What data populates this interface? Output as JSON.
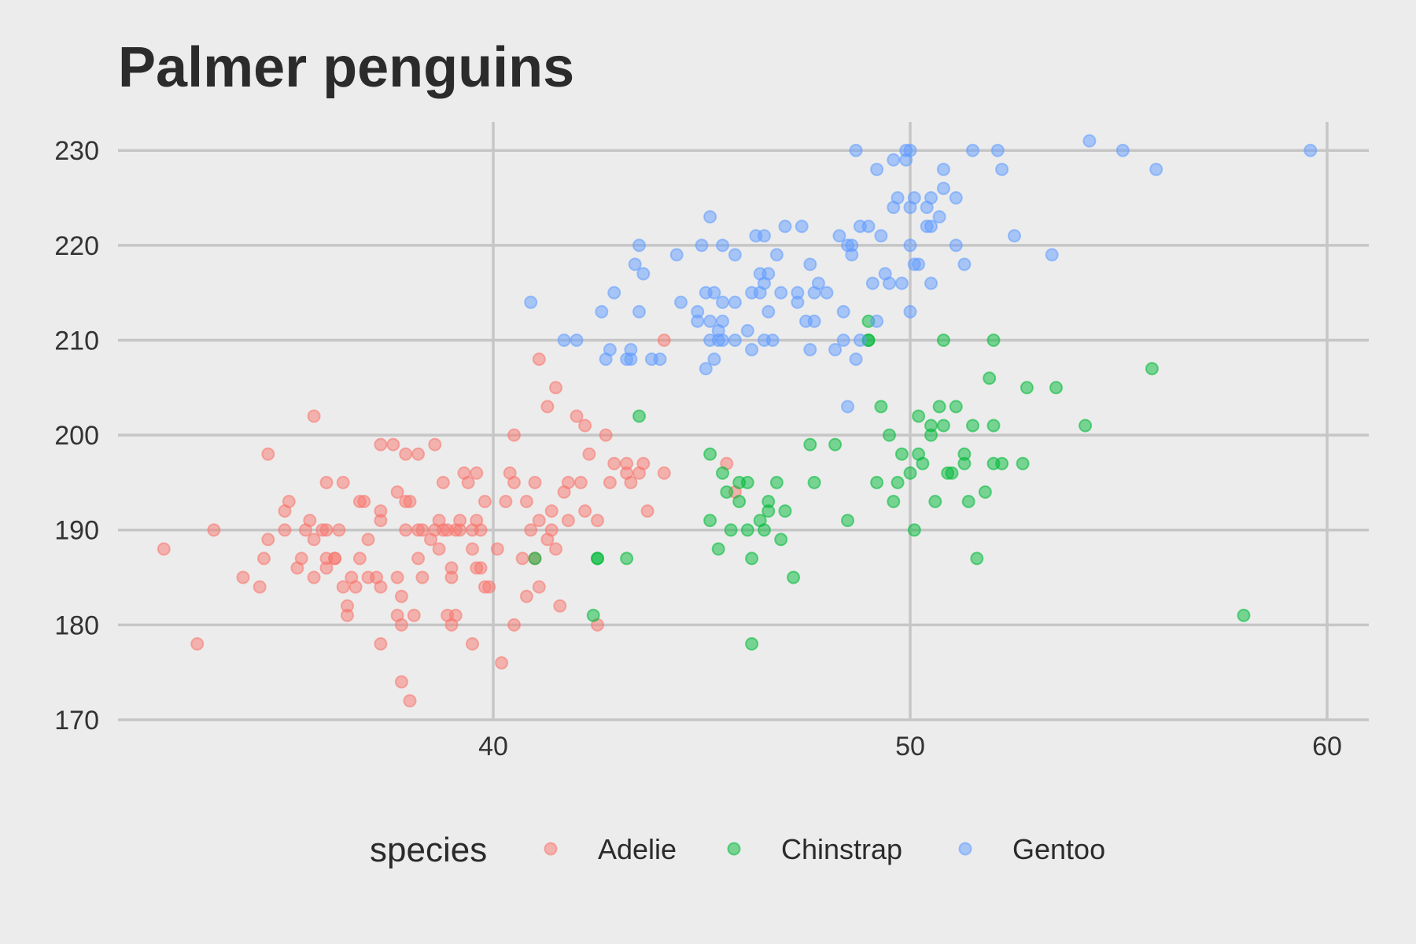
{
  "chart_data": {
    "type": "scatter",
    "title": "Palmer penguins",
    "xlabel": "",
    "ylabel": "",
    "xlim": [
      31,
      61
    ],
    "ylim": [
      170,
      233
    ],
    "x_ticks": [
      40,
      50,
      60
    ],
    "y_ticks": [
      170,
      180,
      190,
      200,
      210,
      220,
      230
    ],
    "x_tick_labels": [
      "40",
      "50",
      "60"
    ],
    "y_tick_labels": [
      "170",
      "180",
      "190",
      "200",
      "210",
      "220",
      "230"
    ],
    "grid": true,
    "legend": {
      "title": "species",
      "position": "bottom"
    },
    "series": [
      {
        "name": "Adelie",
        "color": "#F8766D",
        "points": [
          [
            32.1,
            188
          ],
          [
            32.9,
            178
          ],
          [
            33.3,
            190
          ],
          [
            34.0,
            185
          ],
          [
            34.4,
            184
          ],
          [
            34.5,
            187
          ],
          [
            34.6,
            189
          ],
          [
            34.6,
            198
          ],
          [
            35.0,
            190
          ],
          [
            35.0,
            192
          ],
          [
            35.1,
            193
          ],
          [
            35.3,
            186
          ],
          [
            35.4,
            187
          ],
          [
            35.5,
            190
          ],
          [
            35.6,
            191
          ],
          [
            35.7,
            202
          ],
          [
            35.7,
            185
          ],
          [
            35.7,
            189
          ],
          [
            35.9,
            190
          ],
          [
            36.0,
            190
          ],
          [
            36.0,
            186
          ],
          [
            36.0,
            195
          ],
          [
            36.0,
            187
          ],
          [
            36.2,
            187
          ],
          [
            36.2,
            187
          ],
          [
            36.3,
            190
          ],
          [
            36.4,
            184
          ],
          [
            36.4,
            195
          ],
          [
            36.5,
            182
          ],
          [
            36.5,
            181
          ],
          [
            36.6,
            185
          ],
          [
            36.7,
            184
          ],
          [
            36.8,
            193
          ],
          [
            36.8,
            187
          ],
          [
            36.9,
            193
          ],
          [
            37.0,
            189
          ],
          [
            37.0,
            185
          ],
          [
            37.2,
            185
          ],
          [
            37.3,
            178
          ],
          [
            37.3,
            184
          ],
          [
            37.3,
            191
          ],
          [
            37.3,
            192
          ],
          [
            37.3,
            199
          ],
          [
            37.6,
            199
          ],
          [
            37.7,
            194
          ],
          [
            37.7,
            185
          ],
          [
            37.7,
            181
          ],
          [
            37.8,
            180
          ],
          [
            37.8,
            183
          ],
          [
            37.9,
            193
          ],
          [
            37.9,
            190
          ],
          [
            37.9,
            198
          ],
          [
            37.8,
            174
          ],
          [
            38.0,
            172
          ],
          [
            38.0,
            193
          ],
          [
            38.1,
            181
          ],
          [
            38.2,
            190
          ],
          [
            38.2,
            198
          ],
          [
            38.2,
            187
          ],
          [
            38.3,
            185
          ],
          [
            38.3,
            190
          ],
          [
            38.5,
            189
          ],
          [
            38.6,
            190
          ],
          [
            38.6,
            199
          ],
          [
            38.7,
            191
          ],
          [
            38.7,
            188
          ],
          [
            38.8,
            190
          ],
          [
            38.8,
            195
          ],
          [
            38.9,
            181
          ],
          [
            38.9,
            190
          ],
          [
            39.0,
            180
          ],
          [
            39.0,
            186
          ],
          [
            39.0,
            185
          ],
          [
            39.1,
            190
          ],
          [
            39.1,
            181
          ],
          [
            39.2,
            191
          ],
          [
            39.2,
            190
          ],
          [
            39.3,
            196
          ],
          [
            39.4,
            195
          ],
          [
            39.5,
            178
          ],
          [
            39.5,
            190
          ],
          [
            39.5,
            188
          ],
          [
            39.6,
            186
          ],
          [
            39.6,
            191
          ],
          [
            39.6,
            196
          ],
          [
            39.7,
            186
          ],
          [
            39.7,
            190
          ],
          [
            39.8,
            184
          ],
          [
            39.8,
            193
          ],
          [
            39.9,
            184
          ],
          [
            40.1,
            188
          ],
          [
            40.2,
            176
          ],
          [
            40.3,
            193
          ],
          [
            40.4,
            196
          ],
          [
            40.5,
            195
          ],
          [
            40.5,
            200
          ],
          [
            40.5,
            180
          ],
          [
            40.7,
            187
          ],
          [
            40.8,
            183
          ],
          [
            40.8,
            193
          ],
          [
            40.9,
            190
          ],
          [
            41.0,
            187
          ],
          [
            41.0,
            195
          ],
          [
            41.1,
            191
          ],
          [
            41.1,
            184
          ],
          [
            41.1,
            208
          ],
          [
            41.3,
            203
          ],
          [
            41.3,
            189
          ],
          [
            41.4,
            192
          ],
          [
            41.4,
            190
          ],
          [
            41.5,
            188
          ],
          [
            41.5,
            205
          ],
          [
            41.6,
            182
          ],
          [
            41.7,
            194
          ],
          [
            41.8,
            195
          ],
          [
            41.8,
            191
          ],
          [
            42.0,
            202
          ],
          [
            42.1,
            195
          ],
          [
            42.2,
            192
          ],
          [
            42.2,
            201
          ],
          [
            42.3,
            198
          ],
          [
            42.7,
            200
          ],
          [
            42.8,
            195
          ],
          [
            42.9,
            197
          ],
          [
            42.5,
            180
          ],
          [
            42.5,
            191
          ],
          [
            43.2,
            197
          ],
          [
            43.2,
            196
          ],
          [
            43.3,
            195
          ],
          [
            43.5,
            196
          ],
          [
            43.6,
            197
          ],
          [
            43.7,
            192
          ],
          [
            44.1,
            196
          ],
          [
            44.1,
            210
          ],
          [
            45.6,
            197
          ],
          [
            45.8,
            194
          ]
        ]
      },
      {
        "name": "Chinstrap",
        "color": "#00BA38",
        "points": [
          [
            41.0,
            187
          ],
          [
            42.4,
            181
          ],
          [
            42.5,
            187
          ],
          [
            42.5,
            187
          ],
          [
            43.2,
            187
          ],
          [
            43.5,
            202
          ],
          [
            45.2,
            198
          ],
          [
            45.2,
            191
          ],
          [
            45.4,
            188
          ],
          [
            45.5,
            196
          ],
          [
            45.6,
            194
          ],
          [
            45.7,
            190
          ],
          [
            45.9,
            195
          ],
          [
            45.9,
            193
          ],
          [
            46.1,
            190
          ],
          [
            46.1,
            195
          ],
          [
            46.2,
            178
          ],
          [
            46.2,
            187
          ],
          [
            46.4,
            191
          ],
          [
            46.5,
            190
          ],
          [
            46.6,
            192
          ],
          [
            46.6,
            193
          ],
          [
            46.8,
            195
          ],
          [
            46.9,
            189
          ],
          [
            47.0,
            192
          ],
          [
            47.2,
            185
          ],
          [
            47.6,
            199
          ],
          [
            47.7,
            195
          ],
          [
            48.2,
            199
          ],
          [
            48.5,
            191
          ],
          [
            49.0,
            210
          ],
          [
            49.0,
            212
          ],
          [
            49.3,
            203
          ],
          [
            49.2,
            195
          ],
          [
            49.5,
            200
          ],
          [
            49.6,
            193
          ],
          [
            49.7,
            195
          ],
          [
            49.8,
            198
          ],
          [
            50.0,
            196
          ],
          [
            50.1,
            190
          ],
          [
            50.2,
            198
          ],
          [
            50.2,
            202
          ],
          [
            50.3,
            197
          ],
          [
            50.5,
            200
          ],
          [
            50.5,
            201
          ],
          [
            50.6,
            193
          ],
          [
            50.7,
            203
          ],
          [
            50.8,
            201
          ],
          [
            50.9,
            196
          ],
          [
            51.0,
            196
          ],
          [
            51.1,
            203
          ],
          [
            51.3,
            197
          ],
          [
            51.3,
            198
          ],
          [
            51.4,
            193
          ],
          [
            51.5,
            201
          ],
          [
            51.6,
            187
          ],
          [
            51.8,
            194
          ],
          [
            52.0,
            201
          ],
          [
            52.0,
            197
          ],
          [
            52.0,
            210
          ],
          [
            52.2,
            197
          ],
          [
            52.7,
            197
          ],
          [
            52.8,
            205
          ],
          [
            53.5,
            205
          ],
          [
            51.9,
            206
          ],
          [
            54.2,
            201
          ],
          [
            55.8,
            207
          ],
          [
            58.0,
            181
          ],
          [
            50.8,
            210
          ],
          [
            49.0,
            210
          ]
        ]
      },
      {
        "name": "Gentoo",
        "color": "#619CFF",
        "points": [
          [
            40.9,
            214
          ],
          [
            41.7,
            210
          ],
          [
            42.0,
            210
          ],
          [
            42.6,
            213
          ],
          [
            42.7,
            208
          ],
          [
            42.8,
            209
          ],
          [
            42.9,
            215
          ],
          [
            43.2,
            208
          ],
          [
            43.3,
            209
          ],
          [
            43.3,
            208
          ],
          [
            43.4,
            218
          ],
          [
            43.5,
            213
          ],
          [
            43.5,
            220
          ],
          [
            43.6,
            217
          ],
          [
            43.8,
            208
          ],
          [
            44.0,
            208
          ],
          [
            44.4,
            219
          ],
          [
            44.5,
            214
          ],
          [
            44.9,
            213
          ],
          [
            44.9,
            212
          ],
          [
            45.0,
            220
          ],
          [
            45.1,
            215
          ],
          [
            45.1,
            207
          ],
          [
            45.2,
            212
          ],
          [
            45.2,
            223
          ],
          [
            45.2,
            210
          ],
          [
            45.3,
            215
          ],
          [
            45.3,
            208
          ],
          [
            45.4,
            210
          ],
          [
            45.4,
            211
          ],
          [
            45.5,
            212
          ],
          [
            45.5,
            214
          ],
          [
            45.5,
            210
          ],
          [
            45.5,
            220
          ],
          [
            45.8,
            219
          ],
          [
            45.8,
            210
          ],
          [
            45.8,
            214
          ],
          [
            46.1,
            211
          ],
          [
            46.2,
            215
          ],
          [
            46.2,
            209
          ],
          [
            46.3,
            221
          ],
          [
            46.4,
            215
          ],
          [
            46.4,
            217
          ],
          [
            46.5,
            221
          ],
          [
            46.5,
            216
          ],
          [
            46.5,
            210
          ],
          [
            46.6,
            213
          ],
          [
            46.6,
            217
          ],
          [
            46.7,
            210
          ],
          [
            46.8,
            219
          ],
          [
            46.9,
            215
          ],
          [
            47.0,
            222
          ],
          [
            47.3,
            214
          ],
          [
            47.3,
            215
          ],
          [
            47.4,
            222
          ],
          [
            47.5,
            212
          ],
          [
            47.6,
            209
          ],
          [
            47.7,
            212
          ],
          [
            47.6,
            218
          ],
          [
            47.7,
            215
          ],
          [
            47.8,
            216
          ],
          [
            48.0,
            215
          ],
          [
            48.2,
            209
          ],
          [
            48.3,
            221
          ],
          [
            48.4,
            210
          ],
          [
            48.4,
            213
          ],
          [
            48.5,
            220
          ],
          [
            48.5,
            203
          ],
          [
            48.6,
            219
          ],
          [
            48.6,
            220
          ],
          [
            48.7,
            230
          ],
          [
            48.7,
            208
          ],
          [
            48.8,
            222
          ],
          [
            48.8,
            210
          ],
          [
            49.0,
            222
          ],
          [
            49.1,
            216
          ],
          [
            49.2,
            228
          ],
          [
            49.2,
            212
          ],
          [
            49.3,
            221
          ],
          [
            49.4,
            217
          ],
          [
            49.5,
            216
          ],
          [
            49.6,
            229
          ],
          [
            49.6,
            224
          ],
          [
            49.7,
            225
          ],
          [
            49.8,
            216
          ],
          [
            49.9,
            229
          ],
          [
            49.9,
            230
          ],
          [
            50.0,
            220
          ],
          [
            50.0,
            224
          ],
          [
            50.0,
            213
          ],
          [
            50.1,
            218
          ],
          [
            50.1,
            225
          ],
          [
            50.2,
            218
          ],
          [
            50.4,
            224
          ],
          [
            50.4,
            222
          ],
          [
            50.5,
            222
          ],
          [
            50.5,
            216
          ],
          [
            50.5,
            225
          ],
          [
            50.7,
            223
          ],
          [
            50.8,
            226
          ],
          [
            50.8,
            228
          ],
          [
            51.1,
            225
          ],
          [
            51.1,
            220
          ],
          [
            51.3,
            218
          ],
          [
            51.5,
            230
          ],
          [
            52.1,
            230
          ],
          [
            52.2,
            228
          ],
          [
            52.5,
            221
          ],
          [
            53.4,
            219
          ],
          [
            54.3,
            231
          ],
          [
            55.1,
            230
          ],
          [
            55.9,
            228
          ],
          [
            59.6,
            230
          ],
          [
            50.0,
            230
          ]
        ]
      }
    ]
  }
}
